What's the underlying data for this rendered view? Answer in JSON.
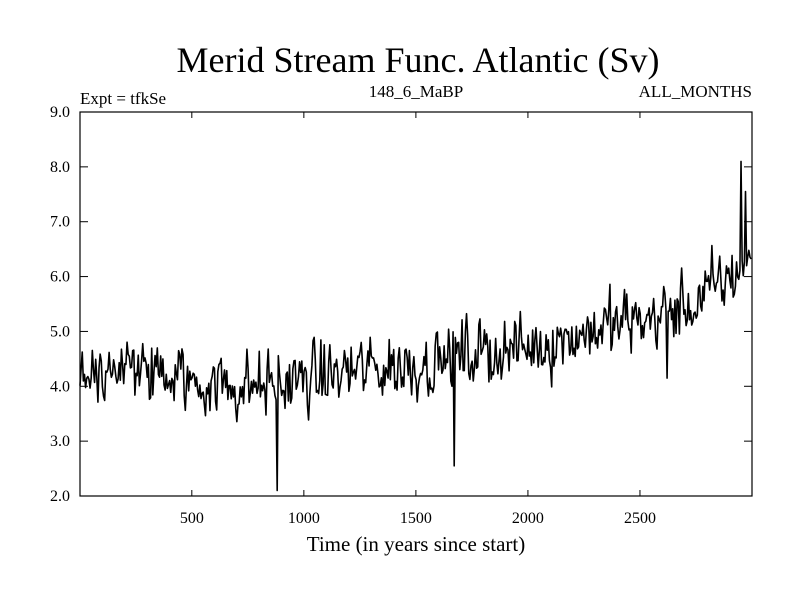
{
  "chart_data": {
    "type": "line",
    "title": "Merid Stream Func. Atlantic (Sv)",
    "subtitle_left": "Expt = tfkSe",
    "subtitle_center": "148_6_MaBP",
    "subtitle_right": "ALL_MONTHS",
    "xlabel": "Time (in years since start)",
    "ylabel": "",
    "xlim": [
      1,
      3000
    ],
    "ylim": [
      2.0,
      9.0
    ],
    "x_ticks": [
      500,
      1000,
      1500,
      2000,
      2500
    ],
    "x_tick_labels": [
      "500",
      "1000",
      "1500",
      "2000",
      "2500"
    ],
    "y_ticks": [
      2.0,
      3.0,
      4.0,
      5.0,
      6.0,
      7.0,
      8.0,
      9.0
    ],
    "y_tick_labels": [
      "2.0",
      "3.0",
      "4.0",
      "5.0",
      "6.0",
      "7.0",
      "8.0",
      "9.0"
    ],
    "grid": false,
    "series": [
      {
        "name": "Merid Stream Func. Atlantic",
        "color": "#000000",
        "x_start": 1,
        "x_step": 5,
        "trend_knots_x": [
          1,
          250,
          500,
          750,
          1000,
          1250,
          1500,
          1750,
          2000,
          2250,
          2500,
          2750,
          2900,
          3000
        ],
        "trend_knots_y": [
          4.3,
          4.3,
          4.1,
          4.0,
          4.1,
          4.3,
          4.4,
          4.6,
          4.7,
          5.0,
          5.2,
          5.5,
          6.0,
          6.3
        ],
        "noise_amplitude": 0.55,
        "notable_points": [
          {
            "x": 880,
            "y": 2.1
          },
          {
            "x": 2950,
            "y": 8.1
          },
          {
            "x": 2970,
            "y": 7.55
          },
          {
            "x": 1670,
            "y": 2.55
          },
          {
            "x": 2620,
            "y": 4.15
          }
        ]
      }
    ]
  }
}
